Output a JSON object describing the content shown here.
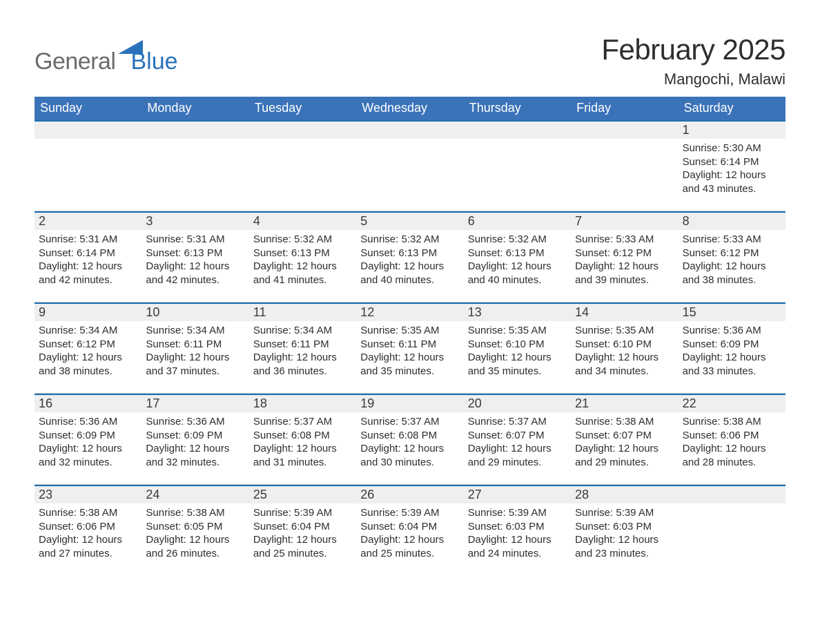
{
  "logo": {
    "text_general": "General",
    "text_blue": "Blue",
    "colors": {
      "gray": "#6b6b6b",
      "blue": "#2a72bb"
    }
  },
  "title": "February 2025",
  "location": "Mangochi, Malawi",
  "colors": {
    "header_blue": "#3b73b9",
    "accent_rule": "#1f6fb2",
    "band_gray": "#efefef",
    "background": "#ffffff",
    "text": "#2e2e2e"
  },
  "days_of_week": [
    "Sunday",
    "Monday",
    "Tuesday",
    "Wednesday",
    "Thursday",
    "Friday",
    "Saturday"
  ],
  "line_prefixes": {
    "sunrise": "Sunrise: ",
    "sunset": "Sunset: ",
    "daylight_a": "Daylight: ",
    "daylight_b_prefix": "and ",
    "daylight_b_suffix": " minutes."
  },
  "weeks": [
    {
      "cells": [
        null,
        null,
        null,
        null,
        null,
        null,
        {
          "n": "1",
          "sunrise": "5:30 AM",
          "sunset": "6:14 PM",
          "hours": "12 hours",
          "mins": "43"
        }
      ]
    },
    {
      "cells": [
        {
          "n": "2",
          "sunrise": "5:31 AM",
          "sunset": "6:14 PM",
          "hours": "12 hours",
          "mins": "42"
        },
        {
          "n": "3",
          "sunrise": "5:31 AM",
          "sunset": "6:13 PM",
          "hours": "12 hours",
          "mins": "42"
        },
        {
          "n": "4",
          "sunrise": "5:32 AM",
          "sunset": "6:13 PM",
          "hours": "12 hours",
          "mins": "41"
        },
        {
          "n": "5",
          "sunrise": "5:32 AM",
          "sunset": "6:13 PM",
          "hours": "12 hours",
          "mins": "40"
        },
        {
          "n": "6",
          "sunrise": "5:32 AM",
          "sunset": "6:13 PM",
          "hours": "12 hours",
          "mins": "40"
        },
        {
          "n": "7",
          "sunrise": "5:33 AM",
          "sunset": "6:12 PM",
          "hours": "12 hours",
          "mins": "39"
        },
        {
          "n": "8",
          "sunrise": "5:33 AM",
          "sunset": "6:12 PM",
          "hours": "12 hours",
          "mins": "38"
        }
      ]
    },
    {
      "cells": [
        {
          "n": "9",
          "sunrise": "5:34 AM",
          "sunset": "6:12 PM",
          "hours": "12 hours",
          "mins": "38"
        },
        {
          "n": "10",
          "sunrise": "5:34 AM",
          "sunset": "6:11 PM",
          "hours": "12 hours",
          "mins": "37"
        },
        {
          "n": "11",
          "sunrise": "5:34 AM",
          "sunset": "6:11 PM",
          "hours": "12 hours",
          "mins": "36"
        },
        {
          "n": "12",
          "sunrise": "5:35 AM",
          "sunset": "6:11 PM",
          "hours": "12 hours",
          "mins": "35"
        },
        {
          "n": "13",
          "sunrise": "5:35 AM",
          "sunset": "6:10 PM",
          "hours": "12 hours",
          "mins": "35"
        },
        {
          "n": "14",
          "sunrise": "5:35 AM",
          "sunset": "6:10 PM",
          "hours": "12 hours",
          "mins": "34"
        },
        {
          "n": "15",
          "sunrise": "5:36 AM",
          "sunset": "6:09 PM",
          "hours": "12 hours",
          "mins": "33"
        }
      ]
    },
    {
      "cells": [
        {
          "n": "16",
          "sunrise": "5:36 AM",
          "sunset": "6:09 PM",
          "hours": "12 hours",
          "mins": "32"
        },
        {
          "n": "17",
          "sunrise": "5:36 AM",
          "sunset": "6:09 PM",
          "hours": "12 hours",
          "mins": "32"
        },
        {
          "n": "18",
          "sunrise": "5:37 AM",
          "sunset": "6:08 PM",
          "hours": "12 hours",
          "mins": "31"
        },
        {
          "n": "19",
          "sunrise": "5:37 AM",
          "sunset": "6:08 PM",
          "hours": "12 hours",
          "mins": "30"
        },
        {
          "n": "20",
          "sunrise": "5:37 AM",
          "sunset": "6:07 PM",
          "hours": "12 hours",
          "mins": "29"
        },
        {
          "n": "21",
          "sunrise": "5:38 AM",
          "sunset": "6:07 PM",
          "hours": "12 hours",
          "mins": "29"
        },
        {
          "n": "22",
          "sunrise": "5:38 AM",
          "sunset": "6:06 PM",
          "hours": "12 hours",
          "mins": "28"
        }
      ]
    },
    {
      "cells": [
        {
          "n": "23",
          "sunrise": "5:38 AM",
          "sunset": "6:06 PM",
          "hours": "12 hours",
          "mins": "27"
        },
        {
          "n": "24",
          "sunrise": "5:38 AM",
          "sunset": "6:05 PM",
          "hours": "12 hours",
          "mins": "26"
        },
        {
          "n": "25",
          "sunrise": "5:39 AM",
          "sunset": "6:04 PM",
          "hours": "12 hours",
          "mins": "25"
        },
        {
          "n": "26",
          "sunrise": "5:39 AM",
          "sunset": "6:04 PM",
          "hours": "12 hours",
          "mins": "25"
        },
        {
          "n": "27",
          "sunrise": "5:39 AM",
          "sunset": "6:03 PM",
          "hours": "12 hours",
          "mins": "24"
        },
        {
          "n": "28",
          "sunrise": "5:39 AM",
          "sunset": "6:03 PM",
          "hours": "12 hours",
          "mins": "23"
        },
        null
      ]
    }
  ]
}
